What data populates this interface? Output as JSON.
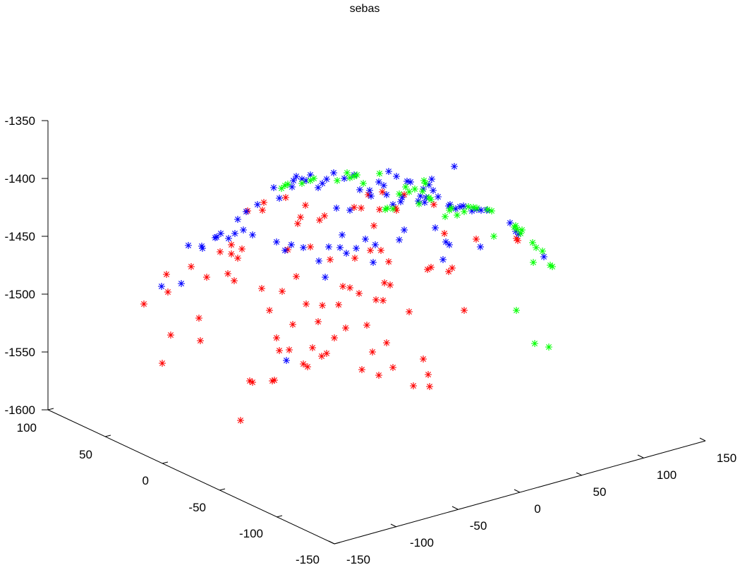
{
  "chart_data": {
    "type": "scatter",
    "projection": "3d",
    "title": "sebas",
    "xlabel": "",
    "ylabel": "",
    "zlabel": "",
    "grid": false,
    "marker": "*",
    "z_axis": {
      "ticks": [
        "-1350",
        "-1400",
        "-1450",
        "-1500",
        "-1550",
        "-1600"
      ]
    },
    "y_axis": {
      "ticks": [
        "100",
        "50",
        "0",
        "-50",
        "-100",
        "-150"
      ]
    },
    "x_axis": {
      "ticks": [
        "-150",
        "-100",
        "-50",
        "0",
        "50",
        "100",
        "150"
      ]
    },
    "series": [
      {
        "color": "#ff0000",
        "points": [
          [
            204,
            431
          ],
          [
            230,
            515
          ],
          [
            236,
            389
          ],
          [
            238,
            414
          ],
          [
            242,
            475
          ],
          [
            271,
            378
          ],
          [
            282,
            451
          ],
          [
            284,
            483
          ],
          [
            293,
            393
          ],
          [
            312,
            357
          ],
          [
            323,
            388
          ],
          [
            328,
            360
          ],
          [
            332,
            398
          ],
          [
            328,
            347
          ],
          [
            337,
            366
          ],
          [
            341,
            596
          ],
          [
            343,
            353
          ],
          [
            351,
            299
          ],
          [
            354,
            540
          ],
          [
            358,
            542
          ],
          [
            372,
            298
          ],
          [
            371,
            409
          ],
          [
            374,
            287
          ],
          [
            382,
            440
          ],
          [
            386,
            540
          ],
          [
            389,
            539
          ],
          [
            392,
            479
          ],
          [
            396,
            497
          ],
          [
            400,
            413
          ],
          [
            405,
            280
          ],
          [
            408,
            354
          ],
          [
            410,
            496
          ],
          [
            415,
            460
          ],
          [
            420,
            392
          ],
          [
            422,
            317
          ],
          [
            426,
            308
          ],
          [
            430,
            516
          ],
          [
            433,
            291
          ],
          [
            434,
            431
          ],
          [
            436,
            520
          ],
          [
            440,
            350
          ],
          [
            443,
            493
          ],
          [
            451,
            456
          ],
          [
            453,
            312
          ],
          [
            456,
            505
          ],
          [
            457,
            433
          ],
          [
            460,
            306
          ],
          [
            463,
            501
          ],
          [
            468,
            368
          ],
          [
            474,
            479
          ],
          [
            480,
            432
          ],
          [
            486,
            406
          ],
          [
            490,
            465
          ],
          [
            496,
            408
          ],
          [
            502,
            294
          ],
          [
            503,
            366
          ],
          [
            509,
            416
          ],
          [
            512,
            295
          ],
          [
            513,
            524
          ],
          [
            520,
            461
          ],
          [
            522,
            276
          ],
          [
            525,
            355
          ],
          [
            528,
            499
          ],
          [
            530,
            320
          ],
          [
            533,
            425
          ],
          [
            537,
            532
          ],
          [
            538,
            297
          ],
          [
            540,
            355
          ],
          [
            542,
            272
          ],
          [
            543,
            426
          ],
          [
            545,
            401
          ],
          [
            548,
            486
          ],
          [
            551,
            371
          ],
          [
            553,
            404
          ],
          [
            557,
            521
          ],
          [
            561,
            295
          ],
          [
            562,
            298
          ],
          [
            573,
            276
          ],
          [
            580,
            442
          ],
          [
            586,
            547
          ],
          [
            600,
            509
          ],
          [
            606,
            382
          ],
          [
            607,
            531
          ],
          [
            609,
            548
          ],
          [
            611,
            379
          ],
          [
            615,
            290
          ],
          [
            630,
            331
          ],
          [
            636,
            385
          ],
          [
            641,
            380
          ],
          [
            658,
            440
          ],
          [
            675,
            339
          ],
          [
            732,
            338
          ],
          [
            734,
            341
          ]
        ]
      },
      {
        "color": "#0000ff",
        "points": [
          [
            229,
            406
          ],
          [
            257,
            402
          ],
          [
            267,
            348
          ],
          [
            286,
            349
          ],
          [
            287,
            352
          ],
          [
            305,
            337
          ],
          [
            307,
            336
          ],
          [
            313,
            331
          ],
          [
            324,
            338
          ],
          [
            333,
            331
          ],
          [
            337,
            311
          ],
          [
            345,
            326
          ],
          [
            349,
            300
          ],
          [
            358,
            333
          ],
          [
            365,
            290
          ],
          [
            388,
            266
          ],
          [
            392,
            343
          ],
          [
            396,
            281
          ],
          [
            404,
            355
          ],
          [
            406,
            511
          ],
          [
            414,
            265
          ],
          [
            413,
            347
          ],
          [
            416,
            256
          ],
          [
            420,
            250
          ],
          [
            428,
            254
          ],
          [
            430,
            351
          ],
          [
            434,
            256
          ],
          [
            440,
            248
          ],
          [
            451,
            266
          ],
          [
            452,
            370
          ],
          [
            457,
            260
          ],
          [
            461,
            393
          ],
          [
            463,
            254
          ],
          [
            466,
            350
          ],
          [
            473,
            245
          ],
          [
            477,
            295
          ],
          [
            482,
            351
          ],
          [
            485,
            333
          ],
          [
            488,
            253
          ],
          [
            491,
            359
          ],
          [
            496,
            298
          ],
          [
            502,
            248
          ],
          [
            505,
            352
          ],
          [
            510,
            269
          ],
          [
            518,
            339
          ],
          [
            524,
            270
          ],
          [
            529,
            372
          ],
          [
            526,
            278
          ],
          [
            532,
            347
          ],
          [
            537,
            258
          ],
          [
            544,
            263
          ],
          [
            548,
            276
          ],
          [
            551,
            243
          ],
          [
            557,
            290
          ],
          [
            562,
            250
          ],
          [
            566,
            340
          ],
          [
            568,
            286
          ],
          [
            570,
            280
          ],
          [
            573,
            326
          ],
          [
            577,
            257
          ],
          [
            582,
            258
          ],
          [
            593,
            285
          ],
          [
            596,
            278
          ],
          [
            600,
            268
          ],
          [
            602,
            287
          ],
          [
            604,
            280
          ],
          [
            608,
            262
          ],
          [
            612,
            254
          ],
          [
            614,
            270
          ],
          [
            617,
            323
          ],
          [
            621,
            279
          ],
          [
            628,
            368
          ],
          [
            632,
            343
          ],
          [
            636,
            292
          ],
          [
            637,
            347
          ],
          [
            638,
            290
          ],
          [
            644,
            236
          ],
          [
            646,
            296
          ],
          [
            652,
            293
          ],
          [
            657,
            292
          ],
          [
            669,
            299
          ],
          [
            676,
            297
          ],
          [
            681,
            350
          ],
          [
            682,
            298
          ],
          [
            690,
            298
          ],
          [
            723,
            316
          ],
          [
            731,
            328
          ],
          [
            735,
            332
          ],
          [
            771,
            364
          ]
        ]
      },
      {
        "color": "#00ff00",
        "points": [
          [
            399,
            267
          ],
          [
            404,
            263
          ],
          [
            408,
            261
          ],
          [
            428,
            260
          ],
          [
            440,
            256
          ],
          [
            445,
            253
          ],
          [
            478,
            256
          ],
          [
            492,
            245
          ],
          [
            496,
            252
          ],
          [
            502,
            250
          ],
          [
            506,
            248
          ],
          [
            515,
            260
          ],
          [
            538,
            246
          ],
          [
            546,
            297
          ],
          [
            549,
            295
          ],
          [
            557,
            296
          ],
          [
            566,
            275
          ],
          [
            575,
            265
          ],
          [
            580,
            272
          ],
          [
            588,
            268
          ],
          [
            594,
            289
          ],
          [
            599,
            271
          ],
          [
            601,
            256
          ],
          [
            603,
            260
          ],
          [
            608,
            280
          ],
          [
            611,
            283
          ],
          [
            631,
            307
          ],
          [
            637,
            298
          ],
          [
            640,
            295
          ],
          [
            648,
            305
          ],
          [
            658,
            300
          ],
          [
            664,
            293
          ],
          [
            671,
            294
          ],
          [
            676,
            295
          ],
          [
            691,
            297
          ],
          [
            697,
            299
          ],
          [
            700,
            335
          ],
          [
            729,
            322
          ],
          [
            731,
            320
          ],
          [
            732,
            440
          ],
          [
            733,
            325
          ],
          [
            738,
            331
          ],
          [
            740,
            326
          ],
          [
            755,
            344
          ],
          [
            756,
            372
          ],
          [
            758,
            487
          ],
          [
            760,
            351
          ],
          [
            769,
            356
          ],
          [
            778,
            492
          ],
          [
            780,
            376
          ],
          [
            783,
            378
          ]
        ]
      }
    ]
  }
}
